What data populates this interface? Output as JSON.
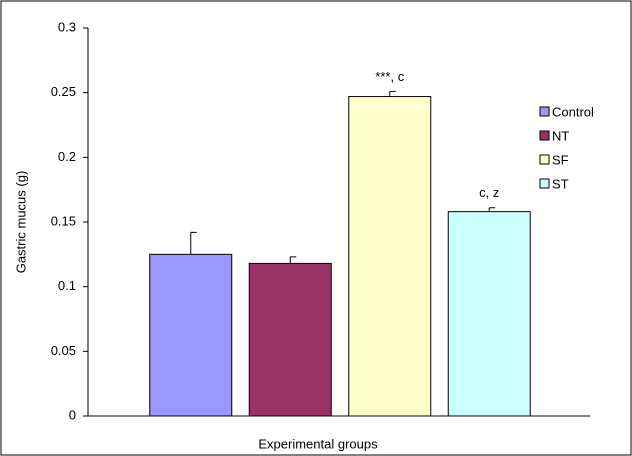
{
  "chart_data": {
    "type": "bar",
    "x_label": "Experimental groups",
    "y_label": "Gastric mucus (g)",
    "categories": [
      "Control",
      "NT",
      "SF",
      "ST"
    ],
    "values": [
      0.125,
      0.118,
      0.247,
      0.158
    ],
    "errors": [
      0.017,
      0.005,
      0.004,
      0.003
    ],
    "colors": [
      "#9999ff",
      "#993366",
      "#ffffcc",
      "#ccffff"
    ],
    "annotations": [
      {
        "category": "SF",
        "text": "***, c"
      },
      {
        "category": "ST",
        "text": "c, z"
      }
    ],
    "ylim": [
      0,
      0.3
    ],
    "yticks": [
      0,
      0.05,
      0.1,
      0.15,
      0.2,
      0.25,
      0.3
    ],
    "grid": false,
    "legend": "right"
  }
}
